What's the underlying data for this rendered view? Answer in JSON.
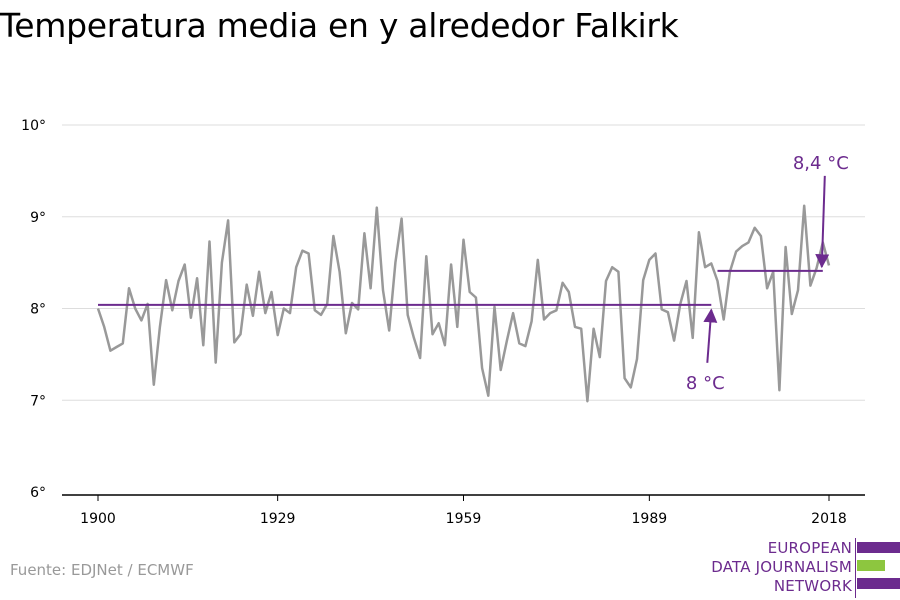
{
  "title": "Temperatura media en y alrededor Falkirk",
  "source": "Fuente: EDJNet / ECMWF",
  "logo": {
    "lines": [
      "EUROPEAN",
      "DATA JOURNALISM",
      "NETWORK"
    ],
    "colors": [
      "#6c2b8e",
      "#8dc63f",
      "#6c2b8e"
    ]
  },
  "colors": {
    "series": "#999999",
    "mean": "#6c2b8e",
    "grid": "#dddddd",
    "axis": "#000000"
  },
  "chart_data": {
    "type": "line",
    "title": "Temperatura media en y alrededor Falkirk",
    "xlabel": "",
    "ylabel": "",
    "xlim": [
      1900,
      2018
    ],
    "ylim": [
      6,
      10
    ],
    "x_ticks": [
      1900,
      1929,
      1959,
      1989,
      2018
    ],
    "x_tick_labels": [
      "1900",
      "1929",
      "1959",
      "1989",
      "2018"
    ],
    "y_ticks": [
      6,
      7,
      8,
      9,
      10
    ],
    "y_tick_labels": [
      "6°",
      "7°",
      "8°",
      "9°",
      "10°"
    ],
    "grid": true,
    "series": [
      {
        "x": [
          1900,
          1901,
          1902,
          1903,
          1904,
          1905,
          1906,
          1907,
          1908,
          1909,
          1910,
          1911,
          1912,
          1913,
          1914,
          1915,
          1916,
          1917,
          1918,
          1919,
          1920,
          1921,
          1922,
          1923,
          1924,
          1925,
          1926,
          1927,
          1928,
          1929,
          1930,
          1931,
          1932,
          1933,
          1934,
          1935,
          1936,
          1937,
          1938,
          1939,
          1940,
          1941,
          1942,
          1943,
          1944,
          1945,
          1946,
          1947,
          1948,
          1949,
          1950,
          1951,
          1952,
          1953,
          1954,
          1955,
          1956,
          1957,
          1958,
          1959,
          1960,
          1961,
          1962,
          1963,
          1964,
          1965,
          1966,
          1967,
          1968,
          1969,
          1970,
          1971,
          1972,
          1973,
          1974,
          1975,
          1976,
          1977,
          1978,
          1979,
          1980,
          1981,
          1982,
          1983,
          1984,
          1985,
          1986,
          1987,
          1988,
          1989,
          1990,
          1991,
          1992,
          1993,
          1994,
          1995,
          1996,
          1997,
          1998,
          1999,
          2000,
          2001,
          2002,
          2003,
          2004,
          2005,
          2006,
          2007,
          2008,
          2009,
          2010,
          2011,
          2012,
          2013,
          2014,
          2015,
          2016,
          2017,
          2018
        ],
        "values": [
          8.0,
          7.8,
          7.54,
          7.58,
          7.62,
          8.22,
          8.0,
          7.87,
          8.05,
          7.17,
          7.8,
          8.31,
          7.98,
          8.3,
          8.48,
          7.9,
          8.33,
          7.6,
          8.73,
          7.41,
          8.5,
          8.96,
          7.63,
          7.72,
          8.26,
          7.92,
          8.4,
          7.95,
          8.18,
          7.71,
          8.0,
          7.95,
          8.45,
          8.63,
          8.6,
          7.98,
          7.93,
          8.05,
          8.79,
          8.4,
          7.73,
          8.06,
          7.99,
          8.82,
          8.22,
          9.1,
          8.2,
          7.76,
          8.5,
          8.98,
          7.93,
          7.68,
          7.46,
          8.57,
          7.72,
          7.84,
          7.6,
          8.48,
          7.8,
          8.75,
          8.18,
          8.12,
          7.35,
          7.05,
          8.02,
          7.33,
          7.65,
          7.95,
          7.62,
          7.59,
          7.86,
          8.53,
          7.88,
          7.95,
          7.98,
          8.28,
          8.18,
          7.8,
          7.78,
          6.99,
          7.78,
          7.47,
          8.3,
          8.45,
          8.4,
          7.24,
          7.14,
          7.45,
          8.31,
          8.53,
          8.6,
          7.99,
          7.96,
          7.65,
          8.05,
          8.3,
          7.68,
          8.83,
          8.45,
          8.49,
          8.3,
          7.88,
          8.4,
          8.62,
          8.68,
          8.72,
          8.88,
          8.79,
          8.22,
          8.4,
          7.11,
          8.67,
          7.94,
          8.2,
          9.12,
          8.25,
          8.44,
          8.72,
          8.47
        ]
      }
    ],
    "mean_lines": [
      {
        "x_start": 1900,
        "x_end": 1999,
        "value": 8.04,
        "label": "8 °C"
      },
      {
        "x_start": 2000,
        "x_end": 2017,
        "value": 8.41,
        "label": "8,4 °C"
      }
    ]
  }
}
